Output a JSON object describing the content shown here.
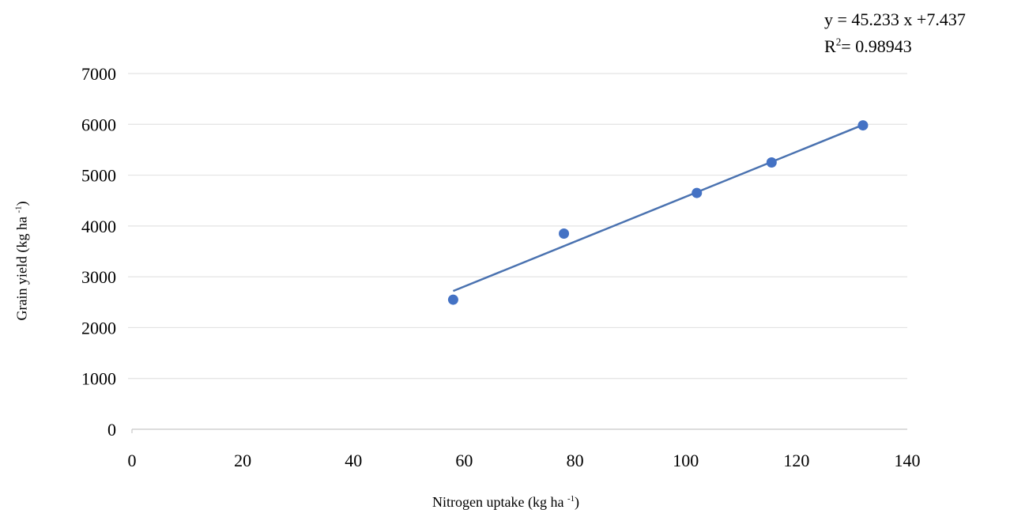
{
  "chart_data": {
    "type": "scatter",
    "title": "",
    "xlabel": "Nitrogen uptake (kg ha",
    "xlabel_unit_exp": "-1",
    "ylabel": "Grain yield (kg ha",
    "ylabel_unit_exp": "-1",
    "xlim": [
      0,
      140
    ],
    "ylim": [
      0,
      7000
    ],
    "x_ticks": [
      0,
      20,
      40,
      60,
      80,
      100,
      120,
      140
    ],
    "y_ticks": [
      0,
      1000,
      2000,
      3000,
      4000,
      5000,
      6000,
      7000
    ],
    "grid": "horizontal",
    "series": [
      {
        "points": [
          {
            "x": 58,
            "y": 2550
          },
          {
            "x": 78,
            "y": 3850
          },
          {
            "x": 102,
            "y": 4650
          },
          {
            "x": 115.5,
            "y": 5250
          },
          {
            "x": 132,
            "y": 5980
          }
        ]
      }
    ],
    "trendline": {
      "x": [
        58,
        132
      ],
      "y": [
        2720,
        5990
      ]
    },
    "equation": "y = 45.233 x +7.437",
    "r2_prefix": "R",
    "r2_exp": "2",
    "r2_value": "= 0.98943",
    "colors": {
      "marker": "#4472c4",
      "trendline": "#4a72b0",
      "grid": "#e3e3e3",
      "axis": "#c8c8c8"
    }
  }
}
